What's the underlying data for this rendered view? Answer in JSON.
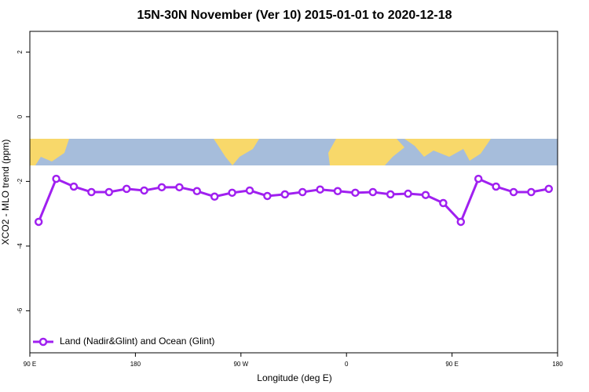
{
  "chart_data": {
    "type": "line",
    "title": "15N-30N November (Ver 10)   2015-01-01 to 2020-12-18",
    "x_label": "Longitude (deg E)",
    "y_label": "XCO2 - MLO trend (ppm)",
    "x": [
      97.5,
      112.5,
      127.5,
      142.5,
      157.5,
      172.5,
      187.5,
      202.5,
      217.5,
      232.5,
      247.5,
      262.5,
      277.5,
      292.5,
      307.5,
      322.5,
      337.5,
      352.5,
      367.5,
      382.5,
      397.5,
      412.5,
      427.5,
      442.5,
      457.5,
      472.5,
      487.5,
      502.5,
      517.5,
      532.5
    ],
    "series": [
      {
        "name": "Land (Nadir&Glint) and Ocean (Glint)",
        "color": "#a020f0",
        "values": [
          -3.25,
          -1.92,
          -2.16,
          -2.33,
          -2.33,
          -2.23,
          -2.28,
          -2.18,
          -2.18,
          -2.3,
          -2.47,
          -2.35,
          -2.28,
          -2.45,
          -2.4,
          -2.33,
          -2.25,
          -2.3,
          -2.35,
          -2.33,
          -2.4,
          -2.38,
          -2.42,
          -2.67,
          -3.25,
          -1.92,
          -2.16,
          -2.33,
          -2.33,
          -2.23
        ]
      }
    ],
    "xlim": [
      90,
      540
    ],
    "xticks": [
      {
        "value": 90,
        "label": "90 E"
      },
      {
        "value": 180,
        "label": "180"
      },
      {
        "value": 270,
        "label": "90 W"
      },
      {
        "value": 360,
        "label": "0"
      },
      {
        "value": 450,
        "label": "90 E"
      },
      {
        "value": 540,
        "label": "180"
      }
    ],
    "ylim": [
      -7.3,
      2.64
    ],
    "yticks": [
      -6,
      -4,
      -2,
      0,
      2
    ],
    "legend": "bottom-left"
  }
}
